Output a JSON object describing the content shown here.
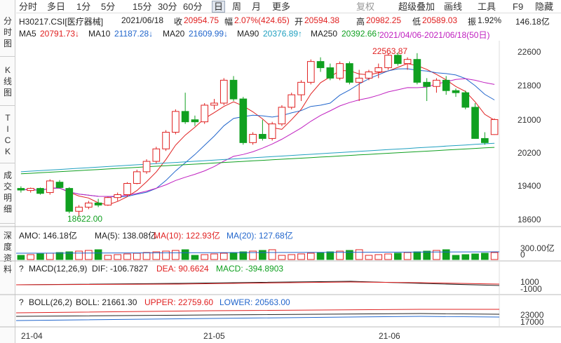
{
  "sidebar": {
    "items": [
      "分时图",
      "K线图",
      "TICK",
      "成交明细",
      "深度资料"
    ]
  },
  "toolbar": {
    "periods": [
      "分时",
      "多日",
      "1分",
      "5分",
      "15分",
      "30分",
      "60分",
      "日",
      "周",
      "月",
      "更多"
    ],
    "active": "日",
    "right": [
      "复权",
      "超级叠加",
      "画线",
      "工具",
      "F9",
      "隐藏"
    ]
  },
  "info": {
    "code": "H30217.CSI[医疗器械]",
    "date": "2021/06/18",
    "close_label": "收",
    "close": "20954.75",
    "change_label": "幅",
    "change": "2.07%(424.65)",
    "open_label": "开",
    "open": "20594.38",
    "high_label": "高",
    "high": "20982.25",
    "low_label": "低",
    "low": "20589.03",
    "amp_label": "振",
    "amp": "1.92%",
    "amount": "146.18亿"
  },
  "ma": {
    "ma5_label": "MA5",
    "ma5": "20791.73↓",
    "ma10_label": "MA10",
    "ma10": "21187.28↓",
    "ma20_label": "MA20",
    "ma20": "21609.99↓",
    "ma90_label": "MA90",
    "ma90": "20376.89↑",
    "ma250_label": "MA250",
    "ma250": "20392.66↑",
    "range": "2021/04/06-2021/06/18(50日)"
  },
  "price_axis": [
    "22600",
    "21800",
    "21000",
    "20200",
    "19400",
    "18600"
  ],
  "annotations": {
    "high": "22563.87",
    "low": "18622.00"
  },
  "amo": {
    "label": "AMO: 146.18亿",
    "ma5": "MA(5): 138.08亿",
    "ma10": "MA(10): 122.93亿",
    "ma20": "MA(20): 127.68亿",
    "axis_top": "300.00亿",
    "axis_zero": "0"
  },
  "macd": {
    "q": "?",
    "label": "MACD(12,26,9)",
    "dif": "DIF: -106.7827",
    "dea": "DEA: 90.6624",
    "macd": "MACD: -394.8903",
    "axis_top": "1000",
    "axis_bot": "-1000"
  },
  "boll": {
    "q": "?",
    "label": "BOLL(26,2)",
    "boll": "BOLL: 21661.30",
    "upper": "UPPER: 22759.60",
    "lower": "LOWER: 20563.00",
    "axis_top": "23000",
    "axis_bot": "17000"
  },
  "date_axis": [
    "21-04",
    "21-05",
    "21-06"
  ],
  "chart_data": {
    "type": "candlestick",
    "candles": [
      [
        19300,
        19350,
        19200,
        19260
      ],
      [
        19250,
        19320,
        19200,
        19300
      ],
      [
        19300,
        19320,
        19150,
        19180
      ],
      [
        19200,
        19520,
        19150,
        19480
      ],
      [
        19450,
        19500,
        19300,
        19320
      ],
      [
        19300,
        19330,
        18700,
        18750
      ],
      [
        18750,
        18900,
        18622,
        18850
      ],
      [
        18850,
        19000,
        18800,
        18950
      ],
      [
        18950,
        19050,
        18850,
        18900
      ],
      [
        18900,
        19100,
        18880,
        19080
      ],
      [
        19080,
        19200,
        19000,
        19150
      ],
      [
        19150,
        19450,
        19100,
        19420
      ],
      [
        19420,
        19750,
        19400,
        19700
      ],
      [
        19700,
        20000,
        19650,
        19950
      ],
      [
        19950,
        20300,
        19900,
        20250
      ],
      [
        20250,
        20700,
        20200,
        20650
      ],
      [
        20650,
        21200,
        20600,
        21150
      ],
      [
        21150,
        21600,
        20850,
        20900
      ],
      [
        20950,
        21050,
        20800,
        20900
      ],
      [
        20900,
        21350,
        20850,
        21300
      ],
      [
        21300,
        21450,
        21200,
        21350
      ],
      [
        21350,
        21950,
        21300,
        21900
      ],
      [
        21900,
        22000,
        21400,
        21450
      ],
      [
        21450,
        21500,
        20350,
        20400
      ],
      [
        20400,
        20650,
        20350,
        20600
      ],
      [
        20600,
        20950,
        20450,
        20500
      ],
      [
        20500,
        20900,
        20450,
        20850
      ],
      [
        20850,
        21300,
        20800,
        21250
      ],
      [
        21250,
        21600,
        21200,
        21550
      ],
      [
        21550,
        21900,
        21400,
        21850
      ],
      [
        21850,
        22400,
        21800,
        22350
      ],
      [
        22350,
        22450,
        22100,
        22200
      ],
      [
        22200,
        22300,
        21900,
        21950
      ],
      [
        21950,
        22350,
        21900,
        22300
      ],
      [
        22300,
        22350,
        21800,
        21850
      ],
      [
        21850,
        22150,
        21400,
        21950
      ],
      [
        21950,
        22150,
        21900,
        22100
      ],
      [
        22100,
        22300,
        21950,
        22200
      ],
      [
        22200,
        22550,
        22150,
        22500
      ],
      [
        22500,
        22563.87,
        22250,
        22300
      ],
      [
        22300,
        22450,
        22150,
        22400
      ],
      [
        22400,
        22550,
        21800,
        21850
      ],
      [
        21850,
        21950,
        21400,
        21750
      ],
      [
        21750,
        21950,
        21600,
        21900
      ],
      [
        21900,
        22000,
        21550,
        21650
      ],
      [
        21650,
        21700,
        21500,
        21600
      ],
      [
        21600,
        21650,
        21200,
        21250
      ],
      [
        21250,
        21350,
        20500,
        20500
      ],
      [
        20500,
        20650,
        20350,
        20400
      ],
      [
        20594.38,
        20982.25,
        20589.03,
        20954.75
      ]
    ],
    "price_range": [
      18400,
      22850
    ]
  }
}
